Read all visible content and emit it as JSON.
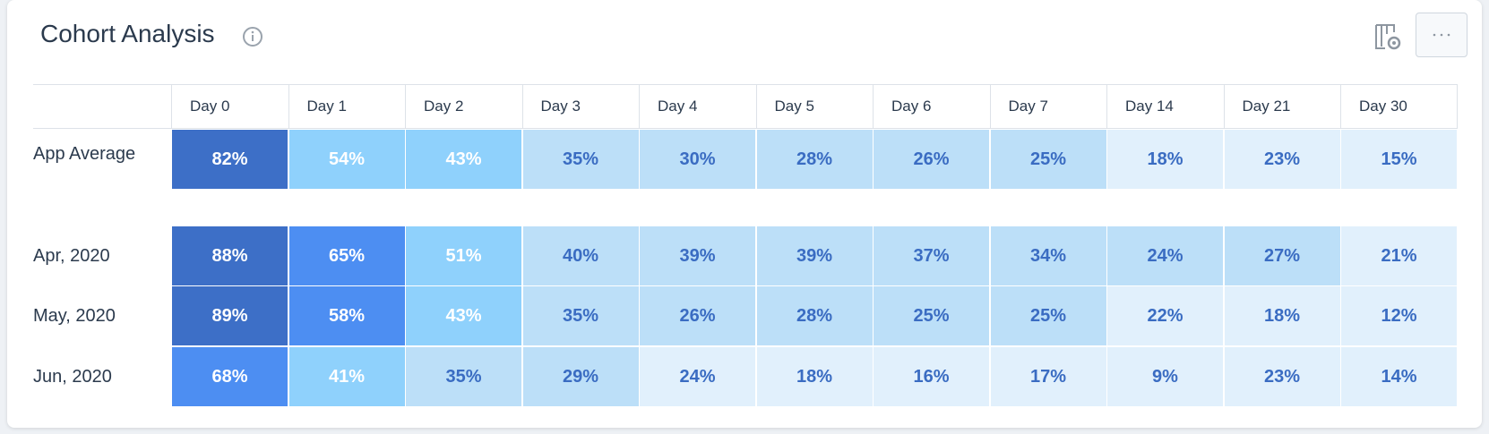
{
  "header": {
    "title": "Cohort Analysis"
  },
  "table": {
    "columns": [
      "Day 0",
      "Day 1",
      "Day 2",
      "Day 3",
      "Day 4",
      "Day 5",
      "Day 6",
      "Day 7",
      "Day 14",
      "Day 21",
      "Day 30"
    ],
    "rows": [
      {
        "label": "App Average",
        "cells": [
          "82%",
          "54%",
          "43%",
          "35%",
          "30%",
          "28%",
          "26%",
          "25%",
          "18%",
          "23%",
          "15%"
        ],
        "colors": [
          "#3d6fc7",
          "#8fd1fc",
          "#8fd1fc",
          "#bcdff8",
          "#bcdff8",
          "#bcdff8",
          "#bcdff8",
          "#bcdff8",
          "#e1f0fc",
          "#e1f0fc",
          "#e1f0fc"
        ]
      },
      {
        "label": "Apr, 2020",
        "cells": [
          "88%",
          "65%",
          "51%",
          "40%",
          "39%",
          "39%",
          "37%",
          "34%",
          "24%",
          "27%",
          "21%"
        ],
        "colors": [
          "#3d6fc7",
          "#4d8ef2",
          "#8fd1fc",
          "#bcdff8",
          "#bcdff8",
          "#bcdff8",
          "#bcdff8",
          "#bcdff8",
          "#bcdff8",
          "#bcdff8",
          "#e1f0fc"
        ]
      },
      {
        "label": "May, 2020",
        "cells": [
          "89%",
          "58%",
          "43%",
          "35%",
          "26%",
          "28%",
          "25%",
          "25%",
          "22%",
          "18%",
          "12%"
        ],
        "colors": [
          "#3d6fc7",
          "#4d8ef2",
          "#8fd1fc",
          "#bcdff8",
          "#bcdff8",
          "#bcdff8",
          "#bcdff8",
          "#bcdff8",
          "#e1f0fc",
          "#e1f0fc",
          "#e1f0fc"
        ]
      },
      {
        "label": "Jun, 2020",
        "cells": [
          "68%",
          "41%",
          "35%",
          "29%",
          "24%",
          "18%",
          "16%",
          "17%",
          "9%",
          "23%",
          "14%"
        ],
        "colors": [
          "#4d8ef2",
          "#8fd1fc",
          "#bcdff8",
          "#bcdff8",
          "#e1f0fc",
          "#e1f0fc",
          "#e1f0fc",
          "#e1f0fc",
          "#e1f0fc",
          "#e1f0fc",
          "#e1f0fc"
        ]
      }
    ]
  }
}
